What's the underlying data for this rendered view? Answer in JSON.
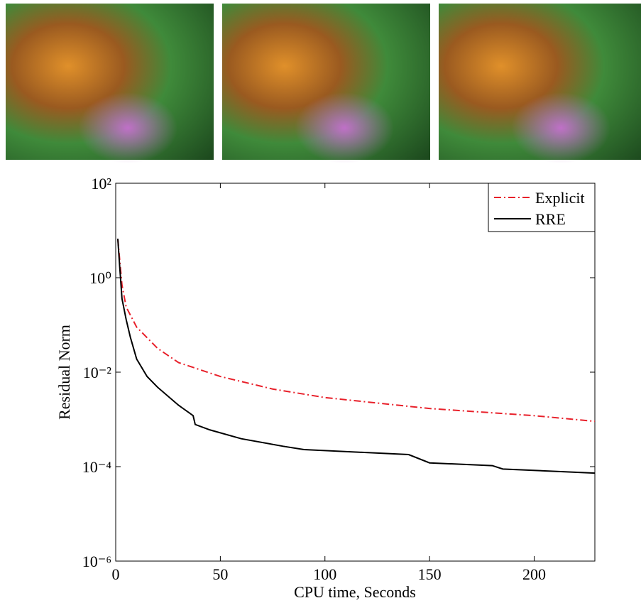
{
  "chart_data": {
    "type": "line",
    "xlabel": "CPU time, Seconds",
    "ylabel": "Residual Norm",
    "xlim": [
      0,
      229
    ],
    "xticks": [
      0,
      50,
      100,
      150,
      200
    ],
    "ylim": [
      1e-06,
      100
    ],
    "yscale": "log",
    "yticks": [
      {
        "value": 1e-06,
        "label": "10⁻⁶"
      },
      {
        "value": 0.0001,
        "label": "10⁻⁴"
      },
      {
        "value": 0.01,
        "label": "10⁻²"
      },
      {
        "value": 1,
        "label": "10⁰"
      },
      {
        "value": 100,
        "label": "10²"
      }
    ],
    "legend": "northeast",
    "series": [
      {
        "name": "Explicit",
        "color": "#e8202a",
        "dash": "dashdot",
        "x": [
          1,
          3,
          5,
          10,
          20,
          30,
          50,
          75,
          100,
          150,
          200,
          229
        ],
        "values": [
          6.7,
          0.7,
          0.24,
          0.09,
          0.032,
          0.016,
          0.0081,
          0.0044,
          0.0029,
          0.0017,
          0.0012,
          0.00091
        ]
      },
      {
        "name": "RRE",
        "color": "#000000",
        "dash": "solid",
        "x": [
          1,
          2,
          3,
          5,
          7,
          10,
          15,
          20,
          30,
          37,
          38,
          45,
          60,
          80,
          90,
          140,
          150,
          180,
          185,
          229
        ],
        "values": [
          6.7,
          1.5,
          0.36,
          0.13,
          0.055,
          0.019,
          0.0081,
          0.0048,
          0.002,
          0.0012,
          0.00078,
          0.0006,
          0.00039,
          0.00027,
          0.00023,
          0.00018,
          0.00012,
          0.000105,
          8.9e-05,
          7.3e-05
        ]
      }
    ]
  }
}
